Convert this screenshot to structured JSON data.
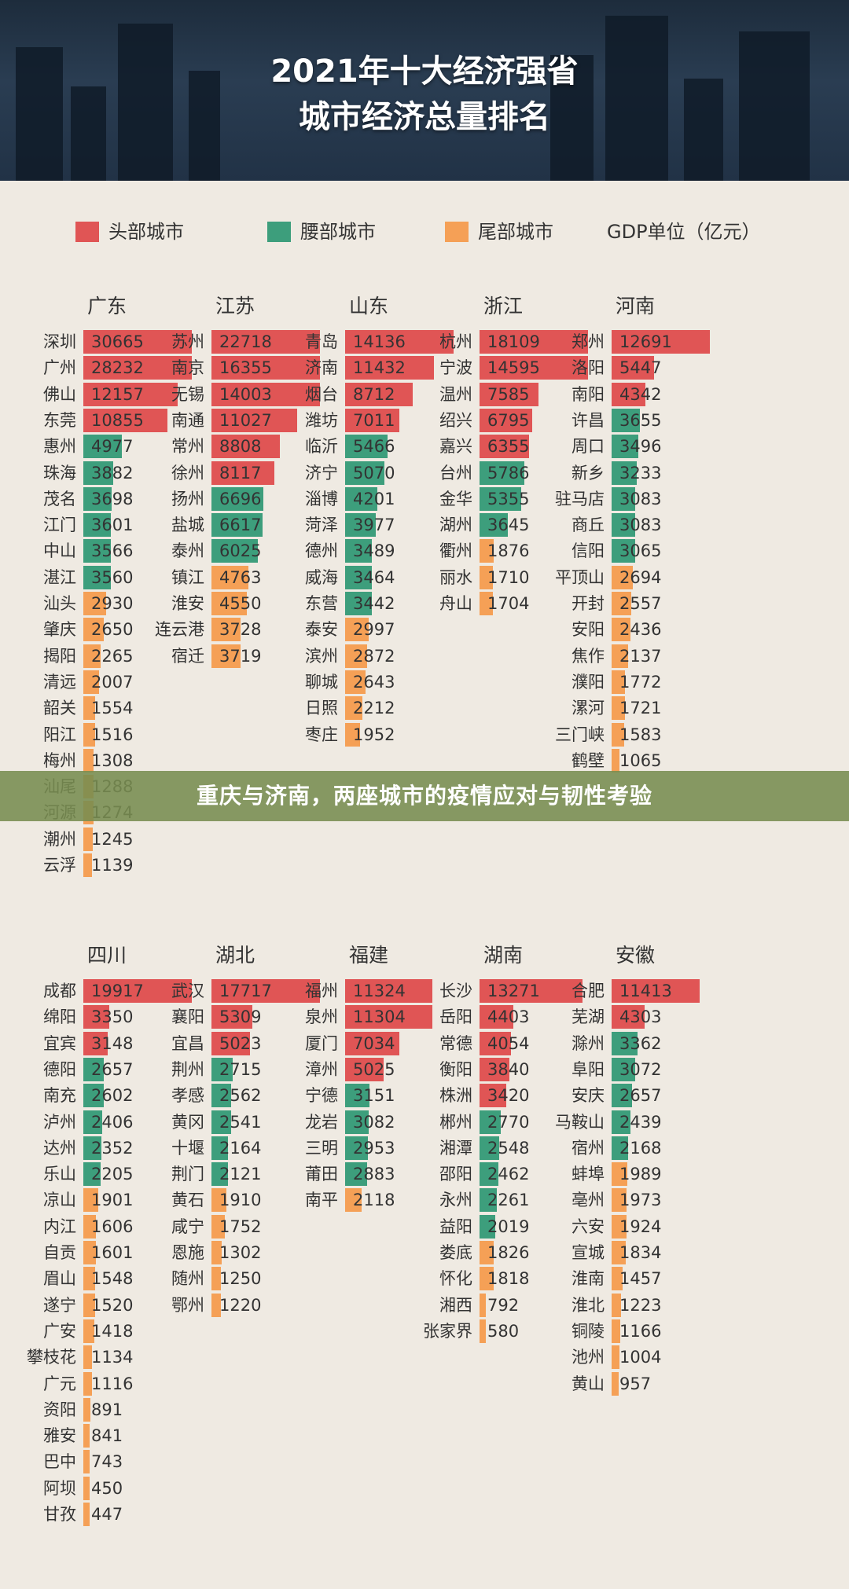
{
  "hero": {
    "title_line1": "2021年十大经济强省",
    "title_line2": "城市经济总量排名"
  },
  "legend": {
    "items": [
      {
        "label": "头部城市",
        "color": "#e05555"
      },
      {
        "label": "腰部城市",
        "color": "#3d9e7c"
      },
      {
        "label": "尾部城市",
        "color": "#f5a056"
      }
    ],
    "unit": "GDP单位（亿元）"
  },
  "banner": {
    "text": "重庆与济南，两座城市的疫情应对与韧性考验"
  },
  "chart_data": {
    "type": "bar",
    "orientation": "horizontal",
    "unit": "亿元",
    "tiers": {
      "head": "头部城市",
      "mid": "腰部城市",
      "tail": "尾部城市"
    },
    "colors": {
      "head": "#e05555",
      "mid": "#3d9e7c",
      "tail": "#f5a056"
    },
    "provinces": [
      {
        "name": "广东",
        "cities": [
          {
            "name": "深圳",
            "value": 30665,
            "tier": "head"
          },
          {
            "name": "广州",
            "value": 28232,
            "tier": "head"
          },
          {
            "name": "佛山",
            "value": 12157,
            "tier": "head"
          },
          {
            "name": "东莞",
            "value": 10855,
            "tier": "head"
          },
          {
            "name": "惠州",
            "value": 4977,
            "tier": "mid"
          },
          {
            "name": "珠海",
            "value": 3882,
            "tier": "mid"
          },
          {
            "name": "茂名",
            "value": 3698,
            "tier": "mid"
          },
          {
            "name": "江门",
            "value": 3601,
            "tier": "mid"
          },
          {
            "name": "中山",
            "value": 3566,
            "tier": "mid"
          },
          {
            "name": "湛江",
            "value": 3560,
            "tier": "mid"
          },
          {
            "name": "汕头",
            "value": 2930,
            "tier": "tail"
          },
          {
            "name": "肇庆",
            "value": 2650,
            "tier": "tail"
          },
          {
            "name": "揭阳",
            "value": 2265,
            "tier": "tail"
          },
          {
            "name": "清远",
            "value": 2007,
            "tier": "tail"
          },
          {
            "name": "韶关",
            "value": 1554,
            "tier": "tail"
          },
          {
            "name": "阳江",
            "value": 1516,
            "tier": "tail"
          },
          {
            "name": "梅州",
            "value": 1308,
            "tier": "tail"
          },
          {
            "name": "汕尾",
            "value": 1288,
            "tier": "tail"
          },
          {
            "name": "河源",
            "value": 1274,
            "tier": "tail"
          },
          {
            "name": "潮州",
            "value": 1245,
            "tier": "tail"
          },
          {
            "name": "云浮",
            "value": 1139,
            "tier": "tail"
          }
        ]
      },
      {
        "name": "江苏",
        "cities": [
          {
            "name": "苏州",
            "value": 22718,
            "tier": "head"
          },
          {
            "name": "南京",
            "value": 16355,
            "tier": "head"
          },
          {
            "name": "无锡",
            "value": 14003,
            "tier": "head"
          },
          {
            "name": "南通",
            "value": 11027,
            "tier": "head"
          },
          {
            "name": "常州",
            "value": 8808,
            "tier": "head"
          },
          {
            "name": "徐州",
            "value": 8117,
            "tier": "head"
          },
          {
            "name": "扬州",
            "value": 6696,
            "tier": "mid"
          },
          {
            "name": "盐城",
            "value": 6617,
            "tier": "mid"
          },
          {
            "name": "泰州",
            "value": 6025,
            "tier": "mid"
          },
          {
            "name": "镇江",
            "value": 4763,
            "tier": "tail"
          },
          {
            "name": "淮安",
            "value": 4550,
            "tier": "tail"
          },
          {
            "name": "连云港",
            "value": 3728,
            "tier": "tail"
          },
          {
            "name": "宿迁",
            "value": 3719,
            "tier": "tail"
          }
        ]
      },
      {
        "name": "山东",
        "cities": [
          {
            "name": "青岛",
            "value": 14136,
            "tier": "head"
          },
          {
            "name": "济南",
            "value": 11432,
            "tier": "head"
          },
          {
            "name": "烟台",
            "value": 8712,
            "tier": "head"
          },
          {
            "name": "潍坊",
            "value": 7011,
            "tier": "head"
          },
          {
            "name": "临沂",
            "value": 5466,
            "tier": "mid"
          },
          {
            "name": "济宁",
            "value": 5070,
            "tier": "mid"
          },
          {
            "name": "淄博",
            "value": 4201,
            "tier": "mid"
          },
          {
            "name": "菏泽",
            "value": 3977,
            "tier": "mid"
          },
          {
            "name": "德州",
            "value": 3489,
            "tier": "mid"
          },
          {
            "name": "威海",
            "value": 3464,
            "tier": "mid"
          },
          {
            "name": "东营",
            "value": 3442,
            "tier": "mid"
          },
          {
            "name": "泰安",
            "value": 2997,
            "tier": "tail"
          },
          {
            "name": "滨州",
            "value": 2872,
            "tier": "tail"
          },
          {
            "name": "聊城",
            "value": 2643,
            "tier": "tail"
          },
          {
            "name": "日照",
            "value": 2212,
            "tier": "tail"
          },
          {
            "name": "枣庄",
            "value": 1952,
            "tier": "tail"
          }
        ]
      },
      {
        "name": "浙江",
        "cities": [
          {
            "name": "杭州",
            "value": 18109,
            "tier": "head"
          },
          {
            "name": "宁波",
            "value": 14595,
            "tier": "head"
          },
          {
            "name": "温州",
            "value": 7585,
            "tier": "head"
          },
          {
            "name": "绍兴",
            "value": 6795,
            "tier": "head"
          },
          {
            "name": "嘉兴",
            "value": 6355,
            "tier": "head"
          },
          {
            "name": "台州",
            "value": 5786,
            "tier": "mid"
          },
          {
            "name": "金华",
            "value": 5355,
            "tier": "mid"
          },
          {
            "name": "湖州",
            "value": 3645,
            "tier": "mid"
          },
          {
            "name": "衢州",
            "value": 1876,
            "tier": "tail"
          },
          {
            "name": "丽水",
            "value": 1710,
            "tier": "tail"
          },
          {
            "name": "舟山",
            "value": 1704,
            "tier": "tail"
          }
        ]
      },
      {
        "name": "河南",
        "cities": [
          {
            "name": "郑州",
            "value": 12691,
            "tier": "head"
          },
          {
            "name": "洛阳",
            "value": 5447,
            "tier": "head"
          },
          {
            "name": "南阳",
            "value": 4342,
            "tier": "head"
          },
          {
            "name": "许昌",
            "value": 3655,
            "tier": "mid"
          },
          {
            "name": "周口",
            "value": 3496,
            "tier": "mid"
          },
          {
            "name": "新乡",
            "value": 3233,
            "tier": "mid"
          },
          {
            "name": "驻马店",
            "value": 3083,
            "tier": "mid"
          },
          {
            "name": "商丘",
            "value": 3083,
            "tier": "mid"
          },
          {
            "name": "信阳",
            "value": 3065,
            "tier": "mid"
          },
          {
            "name": "平顶山",
            "value": 2694,
            "tier": "tail"
          },
          {
            "name": "开封",
            "value": 2557,
            "tier": "tail"
          },
          {
            "name": "安阳",
            "value": 2436,
            "tier": "tail"
          },
          {
            "name": "焦作",
            "value": 2137,
            "tier": "tail"
          },
          {
            "name": "濮阳",
            "value": 1772,
            "tier": "tail"
          },
          {
            "name": "漯河",
            "value": 1721,
            "tier": "tail"
          },
          {
            "name": "三门峡",
            "value": 1583,
            "tier": "tail"
          },
          {
            "name": "鹤壁",
            "value": 1065,
            "tier": "tail"
          }
        ]
      },
      {
        "name": "四川",
        "cities": [
          {
            "name": "成都",
            "value": 19917,
            "tier": "head"
          },
          {
            "name": "绵阳",
            "value": 3350,
            "tier": "head"
          },
          {
            "name": "宜宾",
            "value": 3148,
            "tier": "head"
          },
          {
            "name": "德阳",
            "value": 2657,
            "tier": "mid"
          },
          {
            "name": "南充",
            "value": 2602,
            "tier": "mid"
          },
          {
            "name": "泸州",
            "value": 2406,
            "tier": "mid"
          },
          {
            "name": "达州",
            "value": 2352,
            "tier": "mid"
          },
          {
            "name": "乐山",
            "value": 2205,
            "tier": "mid"
          },
          {
            "name": "凉山",
            "value": 1901,
            "tier": "tail"
          },
          {
            "name": "内江",
            "value": 1606,
            "tier": "tail"
          },
          {
            "name": "自贡",
            "value": 1601,
            "tier": "tail"
          },
          {
            "name": "眉山",
            "value": 1548,
            "tier": "tail"
          },
          {
            "name": "遂宁",
            "value": 1520,
            "tier": "tail"
          },
          {
            "name": "广安",
            "value": 1418,
            "tier": "tail"
          },
          {
            "name": "攀枝花",
            "value": 1134,
            "tier": "tail"
          },
          {
            "name": "广元",
            "value": 1116,
            "tier": "tail"
          },
          {
            "name": "资阳",
            "value": 891,
            "tier": "tail"
          },
          {
            "name": "雅安",
            "value": 841,
            "tier": "tail"
          },
          {
            "name": "巴中",
            "value": 743,
            "tier": "tail"
          },
          {
            "name": "阿坝",
            "value": 450,
            "tier": "tail"
          },
          {
            "name": "甘孜",
            "value": 447,
            "tier": "tail"
          }
        ]
      },
      {
        "name": "湖北",
        "cities": [
          {
            "name": "武汉",
            "value": 17717,
            "tier": "head"
          },
          {
            "name": "襄阳",
            "value": 5309,
            "tier": "head"
          },
          {
            "name": "宜昌",
            "value": 5023,
            "tier": "head"
          },
          {
            "name": "荆州",
            "value": 2715,
            "tier": "mid"
          },
          {
            "name": "孝感",
            "value": 2562,
            "tier": "mid"
          },
          {
            "name": "黄冈",
            "value": 2541,
            "tier": "mid"
          },
          {
            "name": "十堰",
            "value": 2164,
            "tier": "mid"
          },
          {
            "name": "荆门",
            "value": 2121,
            "tier": "mid"
          },
          {
            "name": "黄石",
            "value": 1910,
            "tier": "tail"
          },
          {
            "name": "咸宁",
            "value": 1752,
            "tier": "tail"
          },
          {
            "name": "恩施",
            "value": 1302,
            "tier": "tail"
          },
          {
            "name": "随州",
            "value": 1250,
            "tier": "tail"
          },
          {
            "name": "鄂州",
            "value": 1220,
            "tier": "tail"
          }
        ]
      },
      {
        "name": "福建",
        "cities": [
          {
            "name": "福州",
            "value": 11324,
            "tier": "head"
          },
          {
            "name": "泉州",
            "value": 11304,
            "tier": "head"
          },
          {
            "name": "厦门",
            "value": 7034,
            "tier": "head"
          },
          {
            "name": "漳州",
            "value": 5025,
            "tier": "head"
          },
          {
            "name": "宁德",
            "value": 3151,
            "tier": "mid"
          },
          {
            "name": "龙岩",
            "value": 3082,
            "tier": "mid"
          },
          {
            "name": "三明",
            "value": 2953,
            "tier": "mid"
          },
          {
            "name": "莆田",
            "value": 2883,
            "tier": "mid"
          },
          {
            "name": "南平",
            "value": 2118,
            "tier": "tail"
          }
        ]
      },
      {
        "name": "湖南",
        "cities": [
          {
            "name": "长沙",
            "value": 13271,
            "tier": "head"
          },
          {
            "name": "岳阳",
            "value": 4403,
            "tier": "head"
          },
          {
            "name": "常德",
            "value": 4054,
            "tier": "head"
          },
          {
            "name": "衡阳",
            "value": 3840,
            "tier": "head"
          },
          {
            "name": "株洲",
            "value": 3420,
            "tier": "head"
          },
          {
            "name": "郴州",
            "value": 2770,
            "tier": "mid"
          },
          {
            "name": "湘潭",
            "value": 2548,
            "tier": "mid"
          },
          {
            "name": "邵阳",
            "value": 2462,
            "tier": "mid"
          },
          {
            "name": "永州",
            "value": 2261,
            "tier": "mid"
          },
          {
            "name": "益阳",
            "value": 2019,
            "tier": "mid"
          },
          {
            "name": "娄底",
            "value": 1826,
            "tier": "tail"
          },
          {
            "name": "怀化",
            "value": 1818,
            "tier": "tail"
          },
          {
            "name": "湘西",
            "value": 792,
            "tier": "tail"
          },
          {
            "name": "张家界",
            "value": 580,
            "tier": "tail"
          }
        ]
      },
      {
        "name": "安徽",
        "cities": [
          {
            "name": "合肥",
            "value": 11413,
            "tier": "head"
          },
          {
            "name": "芜湖",
            "value": 4303,
            "tier": "head"
          },
          {
            "name": "滁州",
            "value": 3362,
            "tier": "mid"
          },
          {
            "name": "阜阳",
            "value": 3072,
            "tier": "mid"
          },
          {
            "name": "安庆",
            "value": 2657,
            "tier": "mid"
          },
          {
            "name": "马鞍山",
            "value": 2439,
            "tier": "mid"
          },
          {
            "name": "宿州",
            "value": 2168,
            "tier": "mid"
          },
          {
            "name": "蚌埠",
            "value": 1989,
            "tier": "tail"
          },
          {
            "name": "亳州",
            "value": 1973,
            "tier": "tail"
          },
          {
            "name": "六安",
            "value": 1924,
            "tier": "tail"
          },
          {
            "name": "宣城",
            "value": 1834,
            "tier": "tail"
          },
          {
            "name": "淮南",
            "value": 1457,
            "tier": "tail"
          },
          {
            "name": "淮北",
            "value": 1223,
            "tier": "tail"
          },
          {
            "name": "铜陵",
            "value": 1166,
            "tier": "tail"
          },
          {
            "name": "池州",
            "value": 1004,
            "tier": "tail"
          },
          {
            "name": "黄山",
            "value": 957,
            "tier": "tail"
          }
        ]
      }
    ]
  }
}
